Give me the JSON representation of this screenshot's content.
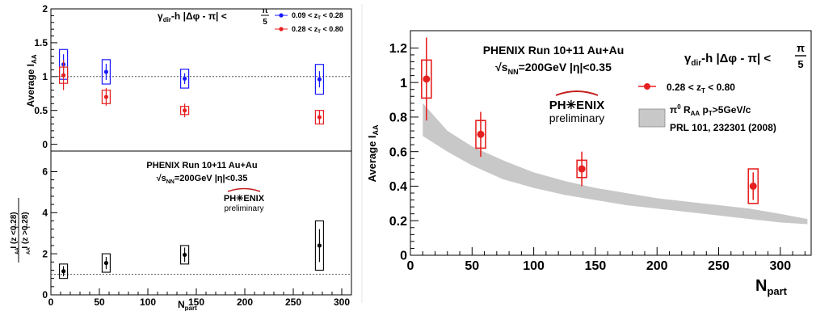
{
  "chart_data": [
    {
      "type": "scatter",
      "xlim": [
        0,
        310
      ],
      "ylim": [
        -0.1,
        2.0
      ],
      "yticks": [
        0,
        0.5,
        1,
        1.5,
        2
      ],
      "yticklabels": [
        "0",
        "0.5",
        "1",
        "1.5",
        "2"
      ],
      "ylabel": "Average I",
      "ylabel_sub": "AA",
      "title": "γ",
      "title_sub": "dir",
      "title_rest": "-h  |Δφ - π| <",
      "title_frac_num": "π",
      "title_frac_den": "5",
      "reference_line": 1.0,
      "grid": false,
      "legend_position": "top-right",
      "series": [
        {
          "name": "0.09 < z",
          "name_sub": "T",
          "name_rest": " < 0.28",
          "color": "#1a1aff",
          "x": [
            13,
            57,
            138,
            277
          ],
          "y": [
            1.18,
            1.07,
            0.97,
            0.96
          ],
          "err": [
            0.15,
            0.12,
            0.08,
            0.12
          ],
          "sys": [
            0.22,
            0.18,
            0.14,
            0.22
          ]
        },
        {
          "name": "0.28 < z",
          "name_sub": "T",
          "name_rest": " < 0.80",
          "color": "#e62020",
          "x": [
            13,
            57,
            138,
            277
          ],
          "y": [
            1.02,
            0.7,
            0.5,
            0.4
          ],
          "err": [
            0.22,
            0.13,
            0.1,
            0.1
          ],
          "sys": [
            0.12,
            0.1,
            0.06,
            0.1
          ]
        }
      ]
    },
    {
      "type": "scatter",
      "xlim": [
        0,
        310
      ],
      "ylim": [
        0,
        7
      ],
      "yticks": [
        0,
        2,
        4,
        6
      ],
      "yticklabels": [
        "0",
        "2",
        "4",
        "6"
      ],
      "xticks": [
        0,
        50,
        100,
        150,
        200,
        250,
        300
      ],
      "xticklabels": [
        "0",
        "50",
        "100",
        "150",
        "200",
        "250",
        "300"
      ],
      "xlabel": "N",
      "xlabel_sub": "part",
      "ylabel_num": "I  (z <0.28)",
      "ylabel_den": "I  (z >0.28)",
      "ylabel_num_sub": "AA",
      "ylabel_sub_T": "T",
      "reference_line": 1.0,
      "grid": false,
      "annotation_line1": "PHENIX Run 10+11 Au+Au",
      "annotation_line2": "√s",
      "annotation_line2_sub": "NN",
      "annotation_line2_rest": "=200GeV   |η|<0.35",
      "logo_text": "PH✳ENIX",
      "logo_sub": "preliminary",
      "series": [
        {
          "color": "#000000",
          "x": [
            13,
            57,
            138,
            277
          ],
          "y": [
            1.15,
            1.55,
            1.95,
            2.4
          ],
          "err": [
            0.25,
            0.3,
            0.35,
            0.8
          ],
          "sys": [
            0.35,
            0.45,
            0.45,
            1.2
          ]
        }
      ]
    },
    {
      "type": "scatter",
      "xlim": [
        0,
        325
      ],
      "ylim": [
        0,
        1.3
      ],
      "xticks": [
        0,
        50,
        100,
        150,
        200,
        250,
        300
      ],
      "xticklabels": [
        "0",
        "50",
        "100",
        "150",
        "200",
        "250",
        "300"
      ],
      "yticks": [
        0,
        0.2,
        0.4,
        0.6,
        0.8,
        1,
        1.2
      ],
      "yticklabels": [
        "0",
        "0.2",
        "0.4",
        "0.6",
        "0.8",
        "1",
        "1.2"
      ],
      "xlabel": "N",
      "xlabel_sub": "part",
      "ylabel": "Average I",
      "ylabel_sub": "AA",
      "grid": false,
      "legend_position": "right",
      "annotation_line1": "PHENIX Run 10+11 Au+Au",
      "annotation_line2": "√s",
      "annotation_line2_sub": "NN",
      "annotation_line2_rest": "=200GeV |η|<0.35",
      "title": "γ",
      "title_sub": "dir",
      "title_rest": "-h |Δφ - π| <",
      "title_frac_num": "π",
      "title_frac_den": "5",
      "logo_text": "PH✳ENIX",
      "logo_sub": "preliminary",
      "series": [
        {
          "name": "0.28 < z",
          "name_sub": "T",
          "name_rest": " < 0.80",
          "color": "#e62020",
          "x": [
            13,
            57,
            139,
            278
          ],
          "y": [
            1.02,
            0.7,
            0.5,
            0.4
          ],
          "err": [
            0.24,
            0.13,
            0.1,
            0.08
          ],
          "sys": [
            0.11,
            0.08,
            0.05,
            0.1
          ]
        }
      ],
      "band": {
        "name_line1": "π",
        "name_line1_sup": "0",
        "name_line1_rest": " R",
        "name_line1_sub": "AA",
        "name_line1_tail": " p",
        "name_line1_tail_sub": "T",
        "name_line1_end": ">5GeV/c",
        "name_line2": "PRL 101, 232301 (2008)",
        "color": "#c8c8c8",
        "x": [
          10,
          30,
          50,
          75,
          100,
          125,
          150,
          175,
          200,
          225,
          250,
          275,
          300,
          322
        ],
        "low": [
          0.69,
          0.6,
          0.52,
          0.44,
          0.39,
          0.35,
          0.32,
          0.29,
          0.27,
          0.25,
          0.23,
          0.21,
          0.19,
          0.18
        ],
        "high": [
          0.88,
          0.72,
          0.63,
          0.55,
          0.48,
          0.43,
          0.39,
          0.36,
          0.33,
          0.31,
          0.29,
          0.27,
          0.24,
          0.21
        ]
      }
    }
  ]
}
